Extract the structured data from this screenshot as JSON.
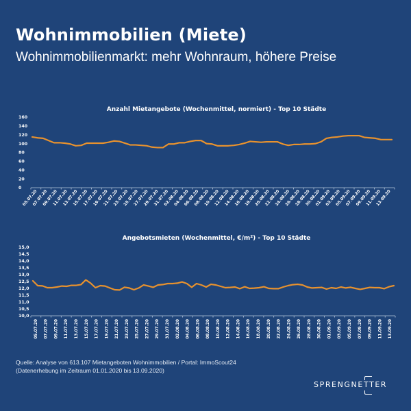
{
  "header": {
    "title": "Wohnimmobilien (Miete)",
    "subtitle": "Wohnimmobilienmarkt: mehr Wohnraum, höhere Preise"
  },
  "colors": {
    "background": "#1f4479",
    "series": "#e8922e",
    "text": "#ffffff"
  },
  "chart_data": [
    {
      "type": "line",
      "title": "Anzahl Mietangebote (Wochenmittel, normiert) - Top 10 Städte",
      "xlabel": "",
      "ylabel": "",
      "ylim": [
        0,
        160
      ],
      "yticks": [
        "0",
        "20",
        "40",
        "60",
        "80",
        "100",
        "120",
        "140",
        "160"
      ],
      "ytick_values": [
        0,
        20,
        40,
        60,
        80,
        100,
        120,
        140,
        160
      ],
      "grid": false,
      "x_tick_labels": [
        "05.07.20",
        "07.07.20",
        "09.07.20",
        "11.07.20",
        "13.07.20",
        "15.07.20",
        "17.07.20",
        "19.07.20",
        "21.07.20",
        "23.07.20",
        "25.07.20",
        "27.07.20",
        "29.07.20",
        "31.07.20",
        "02.08.20",
        "04.08.20",
        "06.08.20",
        "08.08.20",
        "10.08.20",
        "12.08.20",
        "14.08.20",
        "16.08.20",
        "18.08.20",
        "20.08.20",
        "22.08.20",
        "24.08.20",
        "26.08.20",
        "28.08.20",
        "30.08.20",
        "01.09.20",
        "03.09.20",
        "05.09.20",
        "07.09.20",
        "09.09.20",
        "11.09.20",
        "13.09.20"
      ],
      "x_label_rotation": "diagonal",
      "series": [
        {
          "name": "Anzahl Mietangebote",
          "values": [
            115,
            113,
            112,
            107,
            102,
            102,
            101,
            99,
            95,
            96,
            101,
            101,
            101,
            101,
            103,
            106,
            105,
            101,
            97,
            97,
            96,
            95,
            92,
            91,
            91,
            99,
            99,
            102,
            102,
            105,
            107,
            107,
            100,
            99,
            95,
            95,
            95,
            96,
            98,
            101,
            105,
            104,
            103,
            104,
            104,
            104,
            99,
            96,
            98,
            98,
            99,
            99,
            100,
            104,
            112,
            114,
            115,
            117,
            118,
            118,
            118,
            114,
            113,
            112,
            109,
            109,
            109
          ]
        }
      ]
    },
    {
      "type": "line",
      "title": "Angebotsmieten (Wochenmittel, €/m²) - Top 10 Städte",
      "xlabel": "",
      "ylabel": "",
      "ylim": [
        10.0,
        15.0
      ],
      "yticks": [
        "10,0",
        "10,5",
        "11,0",
        "11,5",
        "12,0",
        "12,5",
        "13,0",
        "13,5",
        "14,0",
        "14,5",
        "15,0"
      ],
      "ytick_values": [
        10.0,
        10.5,
        11.0,
        11.5,
        12.0,
        12.5,
        13.0,
        13.5,
        14.0,
        14.5,
        15.0
      ],
      "grid": false,
      "x_tick_labels": [
        "05.07.20",
        "07.07.20",
        "09.07.20",
        "11.07.20",
        "13.07.20",
        "15.07.20",
        "17.07.20",
        "19.07.20",
        "21.07.20",
        "23.07.20",
        "25.07.20",
        "27.07.20",
        "29.07.20",
        "31.07.20",
        "02.08.20",
        "04.08.20",
        "06.08.20",
        "08.08.20",
        "10.08.20",
        "12.08.20",
        "14.08.20",
        "16.08.20",
        "18.08.20",
        "20.08.20",
        "22.08.20",
        "24.08.20",
        "26.08.20",
        "28.08.20",
        "30.08.20",
        "01.09.20",
        "03.09.20",
        "05.09.20",
        "07.09.20",
        "09.09.20",
        "11.09.20",
        "13.09.20"
      ],
      "x_label_rotation": "vertical",
      "series": [
        {
          "name": "Angebotsmieten",
          "values": [
            12.55,
            12.2,
            12.18,
            12.05,
            12.05,
            12.1,
            12.17,
            12.15,
            12.22,
            12.22,
            12.28,
            12.62,
            12.38,
            12.05,
            12.2,
            12.17,
            12.03,
            11.9,
            11.88,
            12.08,
            12.03,
            11.9,
            12.03,
            12.25,
            12.17,
            12.08,
            12.25,
            12.28,
            12.35,
            12.35,
            12.38,
            12.47,
            12.35,
            12.08,
            12.35,
            12.25,
            12.1,
            12.3,
            12.25,
            12.15,
            12.05,
            12.07,
            12.1,
            11.98,
            12.12,
            12.0,
            12.02,
            12.05,
            12.12,
            12.0,
            11.98,
            11.98,
            12.1,
            12.2,
            12.27,
            12.3,
            12.25,
            12.1,
            12.03,
            12.05,
            12.07,
            11.95,
            12.05,
            12.0,
            12.1,
            12.03,
            12.08,
            12.0,
            11.93,
            12.0,
            12.07,
            12.05,
            12.05,
            11.98,
            12.12,
            12.2
          ]
        }
      ]
    }
  ],
  "footer": {
    "source_line1": "Quelle: Analyse von 613.107 Mietangeboten Wohnimmobilien / Portal: ImmoScout24",
    "source_line2": "(Datenerhebung im Zeitraum 01.01.2020 bis  13.09.2020)"
  },
  "logo": {
    "text": "SPRENGNETTER"
  }
}
